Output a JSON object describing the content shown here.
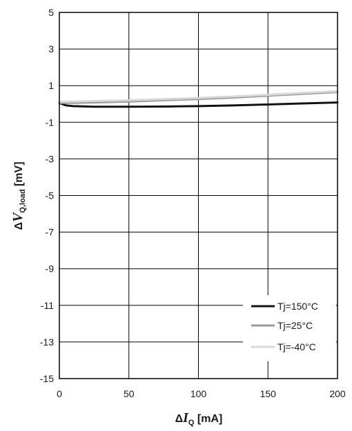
{
  "chart_data": {
    "type": "line",
    "title": "",
    "xlabel": {
      "prefix": "Δ",
      "var": "I",
      "sub": "Q",
      "unit": " [mA]"
    },
    "ylabel": {
      "prefix": "Δ",
      "var": "V",
      "sub": "Q,load",
      "unit": " [mV]"
    },
    "xlim": [
      0,
      200
    ],
    "ylim": [
      -15,
      5
    ],
    "xticks": [
      0,
      50,
      100,
      150,
      200
    ],
    "yticks": [
      5,
      3,
      1,
      -1,
      -3,
      -5,
      -7,
      -9,
      -11,
      -13,
      -15
    ],
    "grid": true,
    "legend_position": "bottom-right",
    "series": [
      {
        "name": "Tj=150°C",
        "color": "#111111",
        "x": [
          0,
          5,
          10,
          25,
          50,
          75,
          100,
          125,
          150,
          175,
          200
        ],
        "y": [
          0.05,
          -0.08,
          -0.12,
          -0.15,
          -0.15,
          -0.14,
          -0.12,
          -0.08,
          -0.03,
          0.03,
          0.08
        ]
      },
      {
        "name": "Tj=25°C",
        "color": "#999999",
        "x": [
          0,
          10,
          25,
          50,
          75,
          100,
          125,
          150,
          175,
          200
        ],
        "y": [
          0.05,
          0.06,
          0.08,
          0.13,
          0.2,
          0.27,
          0.35,
          0.45,
          0.55,
          0.65
        ]
      },
      {
        "name": "Tj=-40°C",
        "color": "#d8d8d8",
        "x": [
          0,
          10,
          25,
          50,
          75,
          100,
          125,
          150,
          175,
          200
        ],
        "y": [
          0.12,
          0.13,
          0.16,
          0.2,
          0.26,
          0.33,
          0.41,
          0.5,
          0.6,
          0.7
        ]
      }
    ]
  }
}
